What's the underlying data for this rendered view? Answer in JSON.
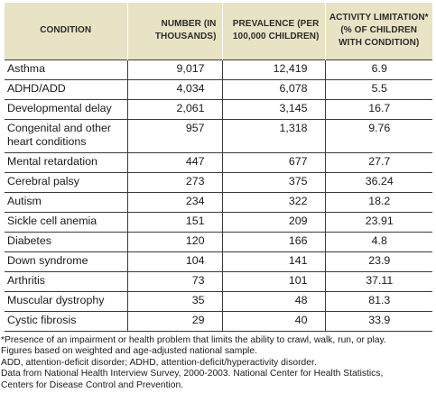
{
  "table": {
    "headers": {
      "condition": "CONDITION",
      "number": "NUMBER (IN THOUSANDS)",
      "prevalence": "PREVALENCE (PER 100,000 CHILDREN)",
      "activity": "ACTIVITY LIMITATION* (% OF CHILDREN WITH CONDITION)"
    },
    "rows": [
      {
        "condition": "Asthma",
        "number": "9,017",
        "prevalence": "12,419",
        "activity": "6.9"
      },
      {
        "condition": "ADHD/ADD",
        "number": "4,034",
        "prevalence": "6,078",
        "activity": "5.5"
      },
      {
        "condition": "Developmental delay",
        "number": "2,061",
        "prevalence": "3,145",
        "activity": "16.7"
      },
      {
        "condition": "Congenital and other heart conditions",
        "number": "957",
        "prevalence": "1,318",
        "activity": "9.76"
      },
      {
        "condition": "Mental retardation",
        "number": "447",
        "prevalence": "677",
        "activity": "27.7"
      },
      {
        "condition": "Cerebral palsy",
        "number": "273",
        "prevalence": "375",
        "activity": "36.24"
      },
      {
        "condition": "Autism",
        "number": "234",
        "prevalence": "322",
        "activity": "18.2"
      },
      {
        "condition": "Sickle cell anemia",
        "number": "151",
        "prevalence": "209",
        "activity": "23.91"
      },
      {
        "condition": "Diabetes",
        "number": "120",
        "prevalence": "166",
        "activity": "4.8"
      },
      {
        "condition": "Down syndrome",
        "number": "104",
        "prevalence": "141",
        "activity": "23.9"
      },
      {
        "condition": "Arthritis",
        "number": "73",
        "prevalence": "101",
        "activity": "37.11"
      },
      {
        "condition": "Muscular dystrophy",
        "number": "35",
        "prevalence": "48",
        "activity": "81.3"
      },
      {
        "condition": "Cystic fibrosis",
        "number": "29",
        "prevalence": "40",
        "activity": "33.9"
      }
    ]
  },
  "footnotes": {
    "line1": "*Presence of an impairment or health problem that limits the ability to crawl, walk, run, or play.",
    "line2": "Figures based on weighted and age-adjusted national sample.",
    "line3": "ADD, attention-deficit disorder; ADHD, attention-deficit/hyperactivity disorder.",
    "line4": "Data from National Health Interview Survey, 2000-2003. National Center for Health Statistics,",
    "line5": "Centers for Disease Control and Prevention."
  }
}
